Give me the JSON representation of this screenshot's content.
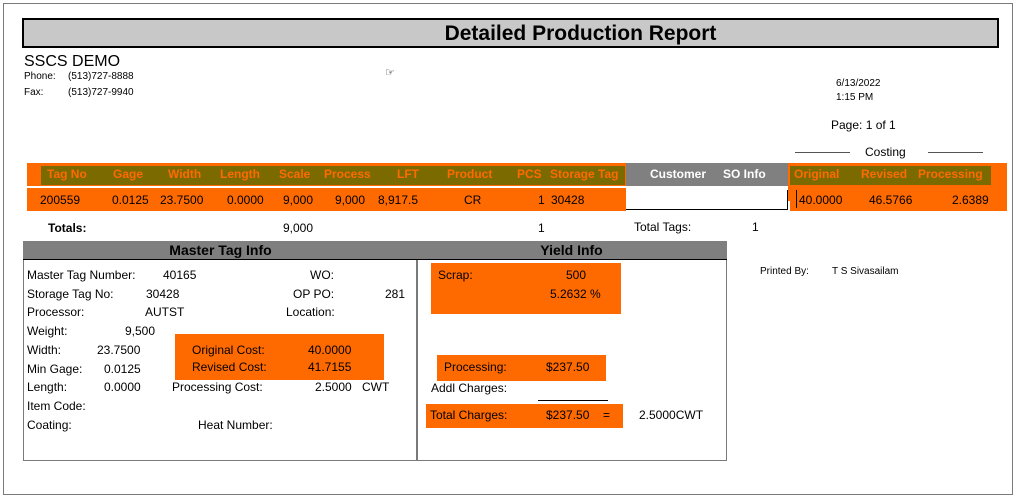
{
  "report_title": "Detailed Production Report",
  "company": {
    "name": "SSCS DEMO",
    "phone_label": "Phone:",
    "phone": "(513)727-8888",
    "fax_label": "Fax:",
    "fax": "(513)727-9940"
  },
  "date": "6/13/2022",
  "time": "1:15 PM",
  "page": "Page: 1 of 1",
  "costing_label": "Costing",
  "columns": {
    "tag_no": "Tag No",
    "gage": "Gage",
    "width": "Width",
    "length": "Length",
    "scale": "Scale",
    "process": "Process",
    "lft": "LFT",
    "product": "Product",
    "pcs": "PCS",
    "storage_tag": "Storage Tag",
    "customer": "Customer",
    "so_info": "SO Info",
    "original": "Original",
    "revised": "Revised",
    "processing": "Processing"
  },
  "row": {
    "tag_no": "200559",
    "gage": "0.0125",
    "width": "23.7500",
    "length": "0.0000",
    "scale": "9,000",
    "process": "9,000",
    "lft": "8,917.5",
    "product": "CR",
    "pcs": "1",
    "storage_tag": "30428",
    "original": "40.0000",
    "revised": "46.5766",
    "processing": "2.6389"
  },
  "totals": {
    "label": "Totals:",
    "scale": "9,000",
    "pcs": "1",
    "tags_label": "Total Tags:",
    "tags": "1"
  },
  "master": {
    "header": "Master Tag Info",
    "master_tag_label": "Master Tag Number:",
    "master_tag": "40165",
    "wo_label": "WO:",
    "storage_label": "Storage Tag No:",
    "storage": "30428",
    "op_po_label": "OP PO:",
    "op_po": "281",
    "processor_label": "Processor:",
    "processor": "AUTST",
    "location_label": "Location:",
    "weight_label": "Weight:",
    "weight": "9,500",
    "width_label": "Width:",
    "width": "23.7500",
    "min_gage_label": "Min Gage:",
    "min_gage": "0.0125",
    "length_label": "Length:",
    "length": "0.0000",
    "item_code_label": "Item Code:",
    "coating_label": "Coating:",
    "heat_label": "Heat Number:",
    "orig_cost_label": "Original Cost:",
    "orig_cost": "40.0000",
    "rev_cost_label": "Revised Cost:",
    "rev_cost": "41.7155",
    "proc_cost_label": "Processing Cost:",
    "proc_cost": "2.5000",
    "proc_cost_unit": "CWT"
  },
  "yield": {
    "header": "Yield Info",
    "scrap_label": "Scrap:",
    "scrap": "500",
    "scrap_pct": "5.2632 %",
    "processing_label": "Processing:",
    "processing": "$237.50",
    "addl_label": "Addl Charges:",
    "total_label": "Total Charges:",
    "total": "$237.50",
    "eq": "=",
    "total_cwt": "2.5000CWT"
  },
  "printed_by_label": "Printed By:",
  "printed_by": "T S Sivasailam",
  "icons": {
    "hand_cursor": "hand-cursor-icon"
  }
}
